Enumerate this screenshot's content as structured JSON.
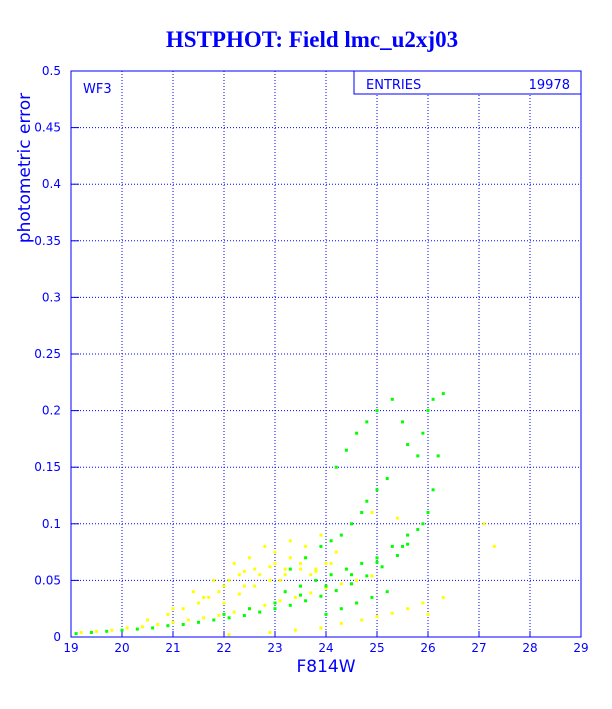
{
  "chart_data": {
    "type": "scatter",
    "title": "HSTPHOT: Field lmc_u2xj03",
    "xlabel": "F814W",
    "ylabel": "photometric error",
    "xlim": [
      19,
      29
    ],
    "ylim": [
      0,
      0.5
    ],
    "x_ticks": [
      "19",
      "20",
      "21",
      "22",
      "23",
      "24",
      "25",
      "26",
      "27",
      "28",
      "29"
    ],
    "y_ticks": [
      "0",
      "0.05",
      "0.1",
      "0.15",
      "0.2",
      "0.25",
      "0.3",
      "0.35",
      "0.4",
      "0.45",
      "0.5"
    ],
    "grid": true,
    "panel_label": "WF3",
    "stats": {
      "label": "ENTRIES",
      "value": "19978"
    },
    "series": [
      {
        "color": "#ffff00",
        "x": [
          19.2,
          19.5,
          19.8,
          20.1,
          20.4,
          20.7,
          21.0,
          21.3,
          21.6,
          21.9,
          22.2,
          22.5,
          22.8,
          23.1,
          23.4,
          23.7,
          24.0,
          24.3,
          24.6,
          24.9,
          20.5,
          20.9,
          21.2,
          21.5,
          21.7,
          21.9,
          22.0,
          22.1,
          22.3,
          22.4,
          22.6,
          22.7,
          22.9,
          23.0,
          23.2,
          23.3,
          23.5,
          23.6,
          23.8,
          24.0,
          21.4,
          21.8,
          22.2,
          22.5,
          22.8,
          23.0,
          23.3,
          23.6,
          23.9,
          24.2,
          22.0,
          22.3,
          22.6,
          22.9,
          23.2,
          23.5,
          23.8,
          24.1,
          21.0,
          21.6,
          22.4,
          23.1,
          23.7,
          22.1,
          22.9,
          23.4,
          23.9,
          24.3,
          24.7,
          25.0,
          25.3,
          25.6,
          25.9,
          26.3,
          27.1,
          27.3,
          26.0,
          24.9,
          25.4
        ],
        "y": [
          0.004,
          0.005,
          0.006,
          0.008,
          0.009,
          0.011,
          0.013,
          0.015,
          0.017,
          0.019,
          0.022,
          0.025,
          0.028,
          0.032,
          0.035,
          0.039,
          0.043,
          0.047,
          0.05,
          0.054,
          0.015,
          0.02,
          0.025,
          0.03,
          0.035,
          0.04,
          0.045,
          0.05,
          0.055,
          0.058,
          0.06,
          0.055,
          0.062,
          0.065,
          0.06,
          0.07,
          0.065,
          0.07,
          0.06,
          0.065,
          0.04,
          0.05,
          0.065,
          0.07,
          0.08,
          0.075,
          0.085,
          0.08,
          0.09,
          0.075,
          0.03,
          0.038,
          0.045,
          0.05,
          0.055,
          0.06,
          0.058,
          0.065,
          0.025,
          0.035,
          0.045,
          0.05,
          0.055,
          0.002,
          0.004,
          0.006,
          0.008,
          0.012,
          0.015,
          0.018,
          0.021,
          0.025,
          0.03,
          0.035,
          0.1,
          0.08,
          0.02,
          0.11,
          0.105
        ]
      },
      {
        "color": "#00ff00",
        "x": [
          19.1,
          19.4,
          19.7,
          20.0,
          20.3,
          20.6,
          20.9,
          21.2,
          21.5,
          21.8,
          22.1,
          22.4,
          22.7,
          23.0,
          23.3,
          23.6,
          23.9,
          24.2,
          24.5,
          24.8,
          25.1,
          25.4,
          25.6,
          25.8,
          26.0,
          26.1,
          26.2,
          22.0,
          22.5,
          23.0,
          23.5,
          24.0,
          24.5,
          25.0,
          25.5,
          23.3,
          23.6,
          23.9,
          24.1,
          24.3,
          24.5,
          24.7,
          24.8,
          25.0,
          25.2,
          24.2,
          24.4,
          24.6,
          24.8,
          25.0,
          25.3,
          25.5,
          25.6,
          25.8,
          25.9,
          26.0,
          26.1,
          26.3,
          24.0,
          24.3,
          24.6,
          24.9,
          25.2,
          23.2,
          23.5,
          23.8,
          24.1,
          24.4,
          24.7,
          25.0,
          25.3,
          25.6,
          25.9
        ],
        "y": [
          0.003,
          0.004,
          0.005,
          0.006,
          0.007,
          0.008,
          0.01,
          0.011,
          0.013,
          0.015,
          0.017,
          0.019,
          0.022,
          0.025,
          0.028,
          0.032,
          0.036,
          0.041,
          0.047,
          0.054,
          0.062,
          0.072,
          0.082,
          0.095,
          0.11,
          0.13,
          0.16,
          0.02,
          0.025,
          0.03,
          0.037,
          0.045,
          0.055,
          0.066,
          0.08,
          0.06,
          0.07,
          0.08,
          0.085,
          0.09,
          0.1,
          0.11,
          0.12,
          0.13,
          0.14,
          0.15,
          0.165,
          0.18,
          0.19,
          0.2,
          0.21,
          0.19,
          0.17,
          0.16,
          0.18,
          0.2,
          0.21,
          0.215,
          0.02,
          0.025,
          0.03,
          0.035,
          0.04,
          0.04,
          0.045,
          0.05,
          0.055,
          0.06,
          0.065,
          0.07,
          0.08,
          0.09,
          0.1
        ]
      }
    ]
  }
}
